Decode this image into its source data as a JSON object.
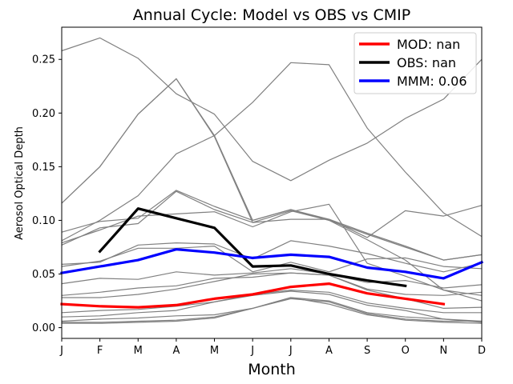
{
  "chart_data": {
    "type": "line",
    "title": "Annual Cycle: Model vs OBS vs CMIP",
    "xlabel": "Month",
    "ylabel": "Aerosol Optical Depth",
    "categories": [
      "J",
      "F",
      "M",
      "A",
      "M",
      "J",
      "J",
      "A",
      "S",
      "O",
      "N",
      "D"
    ],
    "yticks": [
      0.0,
      0.05,
      0.1,
      0.15,
      0.2,
      0.25
    ],
    "ytick_labels": [
      "0.00",
      "0.05",
      "0.10",
      "0.15",
      "0.20",
      "0.25"
    ],
    "ylim": [
      -0.01,
      0.28
    ],
    "grid": false,
    "legend_position": "top-right",
    "colors": {
      "cmip": "#808080",
      "mod": "#ff0000",
      "obs": "#000000",
      "mmm": "#0000ff"
    },
    "cmip_series": [
      [
        0.258,
        0.27,
        0.251,
        0.218,
        0.199,
        0.155,
        0.137,
        0.156,
        0.172,
        0.195,
        0.213,
        0.25
      ],
      [
        0.116,
        0.15,
        0.199,
        0.232,
        0.179,
        0.1,
        0.11,
        0.101,
        0.088,
        0.076,
        0.063,
        0.068
      ],
      [
        0.116,
        0.15,
        0.199,
        0.232,
        0.178,
        0.098,
        0.109,
        0.1,
        0.087,
        0.075,
        0.063,
        0.068
      ],
      [
        0.081,
        0.1,
        0.123,
        0.162,
        0.179,
        0.21,
        0.247,
        0.245,
        0.186,
        0.145,
        0.107,
        0.085
      ],
      [
        0.089,
        0.099,
        0.102,
        0.128,
        0.113,
        0.1,
        0.11,
        0.1,
        0.082,
        0.063,
        0.035,
        0.025
      ],
      [
        0.077,
        0.093,
        0.097,
        0.127,
        0.11,
        0.098,
        0.101,
        0.101,
        0.084,
        0.109,
        0.104,
        0.114
      ],
      [
        0.079,
        0.091,
        0.104,
        0.106,
        0.108,
        0.094,
        0.108,
        0.115,
        0.06,
        0.048,
        0.035,
        0.03
      ],
      [
        0.059,
        0.061,
        0.077,
        0.079,
        0.078,
        0.064,
        0.081,
        0.076,
        0.069,
        0.06,
        0.052,
        0.06
      ],
      [
        0.057,
        0.062,
        0.074,
        0.074,
        0.076,
        0.052,
        0.061,
        0.052,
        0.064,
        0.065,
        0.057,
        0.055
      ],
      [
        0.041,
        0.046,
        0.045,
        0.052,
        0.049,
        0.051,
        0.055,
        0.05,
        0.042,
        0.044,
        0.037,
        0.04
      ],
      [
        0.03,
        0.033,
        0.037,
        0.039,
        0.046,
        0.047,
        0.051,
        0.049,
        0.036,
        0.031,
        0.03,
        0.033
      ],
      [
        0.028,
        0.028,
        0.031,
        0.036,
        0.043,
        0.05,
        0.051,
        0.049,
        0.035,
        0.027,
        0.018,
        0.019
      ],
      [
        0.014,
        0.016,
        0.017,
        0.02,
        0.024,
        0.031,
        0.035,
        0.033,
        0.023,
        0.018,
        0.014,
        0.014
      ],
      [
        0.01,
        0.011,
        0.014,
        0.016,
        0.024,
        0.03,
        0.034,
        0.031,
        0.021,
        0.016,
        0.008,
        0.006
      ],
      [
        0.006,
        0.008,
        0.009,
        0.011,
        0.012,
        0.018,
        0.028,
        0.025,
        0.014,
        0.01,
        0.008,
        0.005
      ],
      [
        0.005,
        0.005,
        0.006,
        0.007,
        0.01,
        0.018,
        0.027,
        0.024,
        0.013,
        0.008,
        0.006,
        0.006
      ],
      [
        0.004,
        0.004,
        0.005,
        0.006,
        0.009,
        0.018,
        0.028,
        0.022,
        0.012,
        0.007,
        0.005,
        0.004
      ]
    ],
    "series": [
      {
        "name": "MOD",
        "legend": "MOD: nan",
        "color_key": "mod",
        "values": [
          0.022,
          0.02,
          0.019,
          0.021,
          0.027,
          0.031,
          0.038,
          0.041,
          0.032,
          0.027,
          0.022,
          null
        ]
      },
      {
        "name": "OBS",
        "legend": "OBS: nan",
        "color_key": "obs",
        "values": [
          null,
          0.071,
          0.111,
          0.102,
          0.093,
          0.057,
          0.058,
          0.05,
          0.044,
          0.039,
          null,
          null
        ]
      },
      {
        "name": "MMM",
        "legend": "MMM: 0.06",
        "color_key": "mmm",
        "values": [
          0.051,
          0.057,
          0.063,
          0.073,
          0.07,
          0.065,
          0.068,
          0.066,
          0.056,
          0.052,
          0.046,
          0.061
        ]
      }
    ]
  }
}
